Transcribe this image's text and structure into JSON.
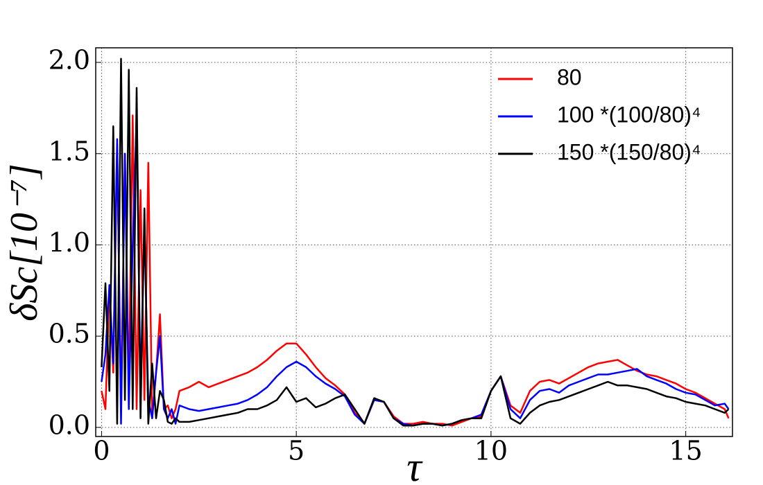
{
  "chart_data": {
    "type": "line",
    "xlabel": "τ",
    "ylabel": "δSc[10⁻⁷]",
    "x": [
      0,
      0.1,
      0.2,
      0.3,
      0.4,
      0.5,
      0.6,
      0.7,
      0.8,
      0.9,
      1.0,
      1.1,
      1.2,
      1.3,
      1.4,
      1.5,
      1.6,
      1.7,
      1.8,
      1.9,
      2.0,
      2.25,
      2.5,
      2.75,
      3.0,
      3.25,
      3.5,
      3.75,
      4.0,
      4.25,
      4.5,
      4.75,
      5.0,
      5.25,
      5.5,
      5.75,
      6.0,
      6.25,
      6.5,
      6.75,
      7.0,
      7.25,
      7.5,
      7.75,
      8.0,
      8.25,
      8.5,
      8.75,
      9.0,
      9.25,
      9.5,
      9.75,
      10.0,
      10.25,
      10.5,
      10.75,
      11.0,
      11.25,
      11.5,
      11.75,
      12.0,
      12.25,
      12.5,
      12.75,
      13.0,
      13.25,
      13.5,
      13.75,
      14.0,
      14.25,
      14.5,
      14.75,
      15.0,
      15.25,
      15.5,
      15.75,
      16.0,
      16.1
    ],
    "series": [
      {
        "name": "80",
        "color": "#ff0000",
        "values": [
          0.2,
          0.1,
          0.75,
          0.3,
          1.55,
          0.1,
          1.5,
          0.2,
          1.71,
          0.1,
          1.3,
          0.15,
          1.45,
          0.05,
          0.3,
          0.62,
          0.1,
          0.12,
          0.05,
          0.1,
          0.2,
          0.22,
          0.25,
          0.22,
          0.24,
          0.26,
          0.28,
          0.3,
          0.33,
          0.37,
          0.42,
          0.46,
          0.46,
          0.4,
          0.33,
          0.27,
          0.23,
          0.18,
          0.08,
          0.02,
          0.15,
          0.14,
          0.06,
          0.02,
          0.02,
          0.03,
          0.02,
          0.02,
          0.01,
          0.03,
          0.05,
          0.06,
          0.2,
          0.28,
          0.12,
          0.08,
          0.2,
          0.25,
          0.26,
          0.24,
          0.27,
          0.3,
          0.33,
          0.35,
          0.36,
          0.37,
          0.34,
          0.31,
          0.29,
          0.28,
          0.26,
          0.24,
          0.21,
          0.19,
          0.16,
          0.13,
          0.1,
          0.05
        ]
      },
      {
        "name": "100 *(100/80)⁴",
        "color": "#0000ff",
        "values": [
          0.25,
          0.4,
          0.78,
          0.35,
          1.58,
          0.02,
          1.5,
          0.1,
          1.0,
          1.71,
          0.2,
          1.1,
          0.15,
          0.05,
          0.3,
          0.5,
          0.1,
          0.05,
          0.1,
          0.02,
          0.12,
          0.1,
          0.09,
          0.1,
          0.11,
          0.12,
          0.13,
          0.15,
          0.18,
          0.22,
          0.28,
          0.33,
          0.36,
          0.33,
          0.28,
          0.24,
          0.21,
          0.17,
          0.07,
          0.02,
          0.15,
          0.14,
          0.05,
          0.02,
          0.01,
          0.02,
          0.02,
          0.01,
          0.02,
          0.04,
          0.05,
          0.07,
          0.2,
          0.28,
          0.1,
          0.05,
          0.15,
          0.2,
          0.21,
          0.19,
          0.23,
          0.25,
          0.27,
          0.29,
          0.29,
          0.3,
          0.31,
          0.32,
          0.28,
          0.26,
          0.24,
          0.21,
          0.19,
          0.18,
          0.15,
          0.12,
          0.13,
          0.1
        ]
      },
      {
        "name": "150 *(150/80)⁴",
        "color": "#000000",
        "values": [
          0.33,
          0.79,
          0.2,
          1.65,
          0.02,
          2.02,
          0.15,
          1.96,
          0.1,
          1.86,
          0.05,
          1.2,
          0.02,
          0.35,
          0.05,
          0.2,
          0.15,
          0.03,
          0.02,
          0.05,
          0.03,
          0.03,
          0.04,
          0.05,
          0.06,
          0.07,
          0.08,
          0.1,
          0.1,
          0.12,
          0.15,
          0.22,
          0.14,
          0.16,
          0.11,
          0.13,
          0.16,
          0.18,
          0.1,
          0.02,
          0.16,
          0.14,
          0.05,
          0.01,
          0.01,
          0.02,
          0.02,
          0.01,
          0.02,
          0.04,
          0.05,
          0.05,
          0.2,
          0.28,
          0.05,
          0.02,
          0.08,
          0.12,
          0.14,
          0.15,
          0.17,
          0.19,
          0.21,
          0.23,
          0.25,
          0.23,
          0.23,
          0.22,
          0.21,
          0.19,
          0.17,
          0.16,
          0.14,
          0.13,
          0.12,
          0.1,
          0.08,
          0.1
        ]
      }
    ],
    "xlim": [
      -0.15,
      16.2
    ],
    "xticks": [
      0,
      5,
      10,
      15
    ],
    "ylim": [
      -0.05,
      2.08
    ],
    "yticks": [
      {
        "value": 0,
        "label": "0.0"
      },
      0.5,
      {
        "value": 1,
        "label": "1.0"
      },
      1.5,
      {
        "value": 2,
        "label": "2.0"
      }
    ],
    "grid": true,
    "legend": "upper right"
  }
}
